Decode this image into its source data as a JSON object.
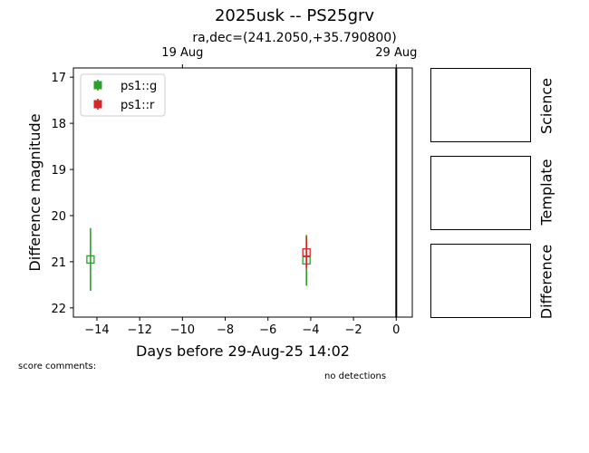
{
  "header": {
    "title": "2025usk -- PS25grv",
    "subtitle": "ra,dec=(241.2050,+35.790800)"
  },
  "chart_data": {
    "type": "scatter",
    "xlabel": "Days before 29-Aug-25 14:02",
    "ylabel": "Difference magnitude",
    "xlim": [
      -15.1,
      0.75
    ],
    "ylim": [
      22.2,
      16.8
    ],
    "y_inverted": true,
    "x_ticks": [
      -14,
      -12,
      -10,
      -8,
      -6,
      -4,
      -2,
      0
    ],
    "x_tick_labels": [
      "−14",
      "−12",
      "−10",
      "−8",
      "−6",
      "−4",
      "−2",
      "0"
    ],
    "y_ticks": [
      17,
      18,
      19,
      20,
      21,
      22
    ],
    "y_tick_labels": [
      "17",
      "18",
      "19",
      "20",
      "21",
      "22"
    ],
    "top_axis": {
      "ticks": [
        -10,
        0
      ],
      "labels": [
        "19 Aug",
        "29 Aug"
      ]
    },
    "vline_x": 0,
    "grid": false,
    "legend_position": "top-left",
    "series": [
      {
        "name": "ps1::g",
        "color": "#2ca02c",
        "points": [
          {
            "x": -14.3,
            "y": 20.95,
            "err": 0.68
          },
          {
            "x": -4.2,
            "y": 20.97,
            "err": 0.55
          }
        ]
      },
      {
        "name": "ps1::r",
        "color": "#d62728",
        "points": [
          {
            "x": -4.2,
            "y": 20.8,
            "err": 0.35
          }
        ]
      }
    ]
  },
  "stamps": {
    "science": "Science",
    "template": "Template",
    "difference": "Difference"
  },
  "footer": {
    "score_comments": "score comments:",
    "no_detections": "no detections"
  }
}
